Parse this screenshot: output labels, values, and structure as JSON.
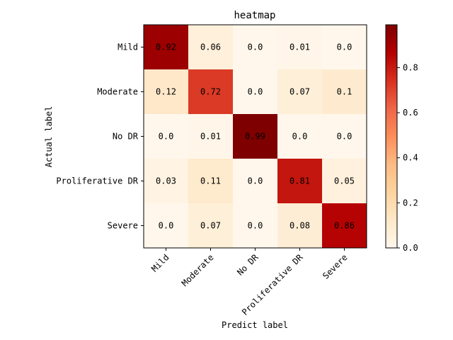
{
  "chart_data": {
    "type": "heatmap",
    "title": "heatmap",
    "xlabel": "Predict label",
    "ylabel": "Actual label",
    "x_categories": [
      "Mild",
      "Moderate",
      "No DR",
      "Proliferative DR",
      "Severe"
    ],
    "y_categories": [
      "Mild",
      "Moderate",
      "No DR",
      "Proliferative DR",
      "Severe"
    ],
    "values": [
      [
        0.92,
        0.06,
        0.0,
        0.01,
        0.0
      ],
      [
        0.12,
        0.72,
        0.0,
        0.07,
        0.1
      ],
      [
        0.0,
        0.01,
        0.99,
        0.0,
        0.0
      ],
      [
        0.03,
        0.11,
        0.0,
        0.81,
        0.05
      ],
      [
        0.0,
        0.07,
        0.0,
        0.08,
        0.86
      ]
    ],
    "value_labels": [
      [
        "0.92",
        "0.06",
        "0.0",
        "0.01",
        "0.0"
      ],
      [
        "0.12",
        "0.72",
        "0.0",
        "0.07",
        "0.1"
      ],
      [
        "0.0",
        "0.01",
        "0.99",
        "0.0",
        "0.0"
      ],
      [
        "0.03",
        "0.11",
        "0.0",
        "0.81",
        "0.05"
      ],
      [
        "0.0",
        "0.07",
        "0.0",
        "0.08",
        "0.86"
      ]
    ],
    "colormap": "OrRd",
    "colorbar": {
      "range": [
        0.0,
        0.99
      ],
      "ticks": [
        0.0,
        0.2,
        0.4,
        0.6,
        0.8
      ],
      "tick_labels": [
        "0.0",
        "0.2",
        "0.4",
        "0.6",
        "0.8"
      ]
    }
  }
}
